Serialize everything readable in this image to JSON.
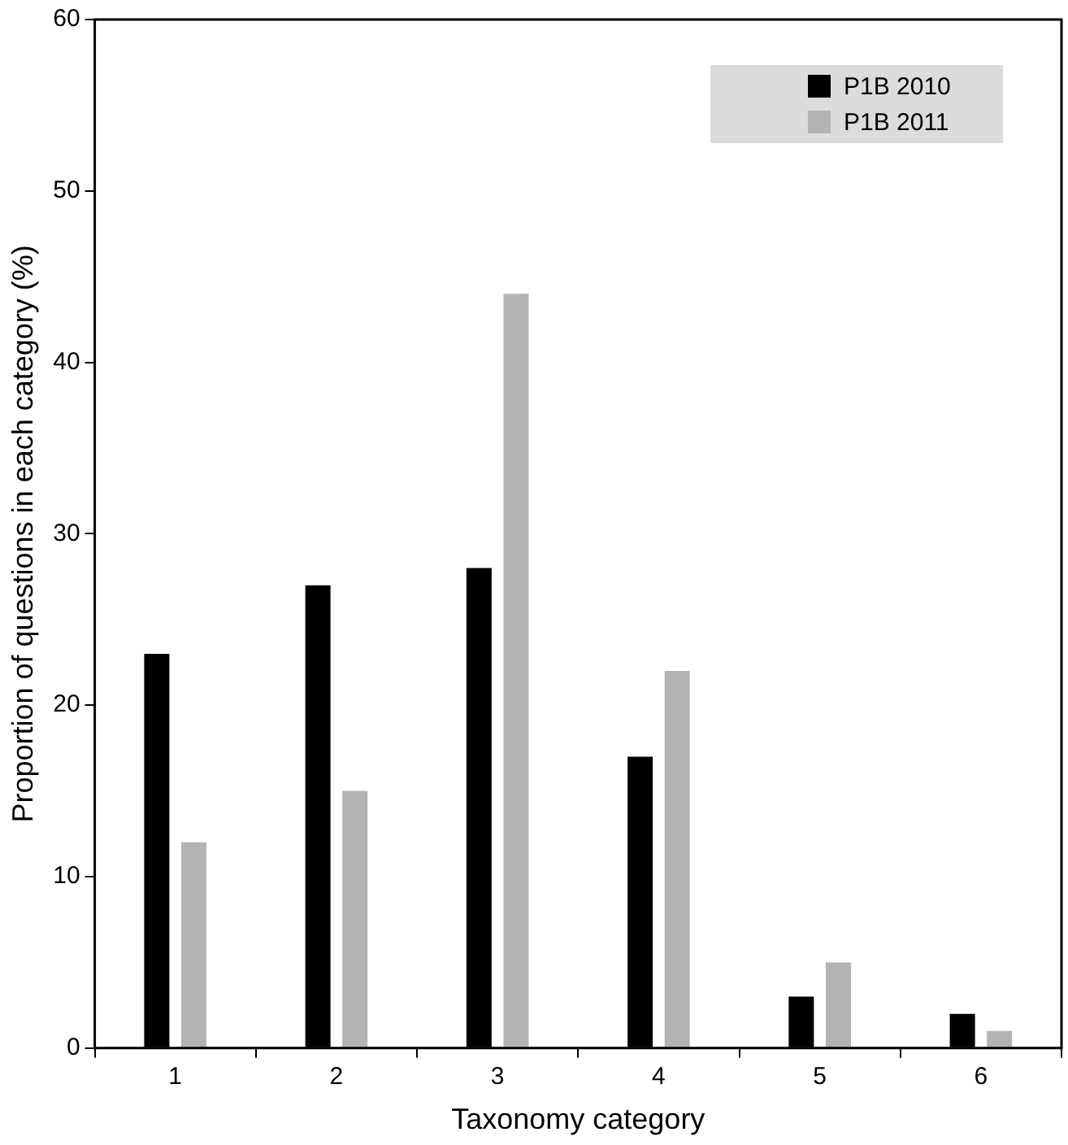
{
  "chart_data": {
    "type": "bar",
    "xlabel": "Taxonomy category",
    "ylabel": "Proportion of questions in each category (%)",
    "categories": [
      "1",
      "2",
      "3",
      "4",
      "5",
      "6"
    ],
    "series": [
      {
        "name": "P1B 2010",
        "color": "#000000",
        "values": [
          23,
          27,
          28,
          17,
          3,
          2
        ]
      },
      {
        "name": "P1B 2011",
        "color": "#b3b3b3",
        "values": [
          12,
          15,
          44,
          22,
          5,
          1
        ]
      }
    ],
    "ylim": [
      0,
      60
    ],
    "yticks": [
      0,
      10,
      20,
      30,
      40,
      50,
      60
    ],
    "grid": false,
    "legend": "top right"
  }
}
